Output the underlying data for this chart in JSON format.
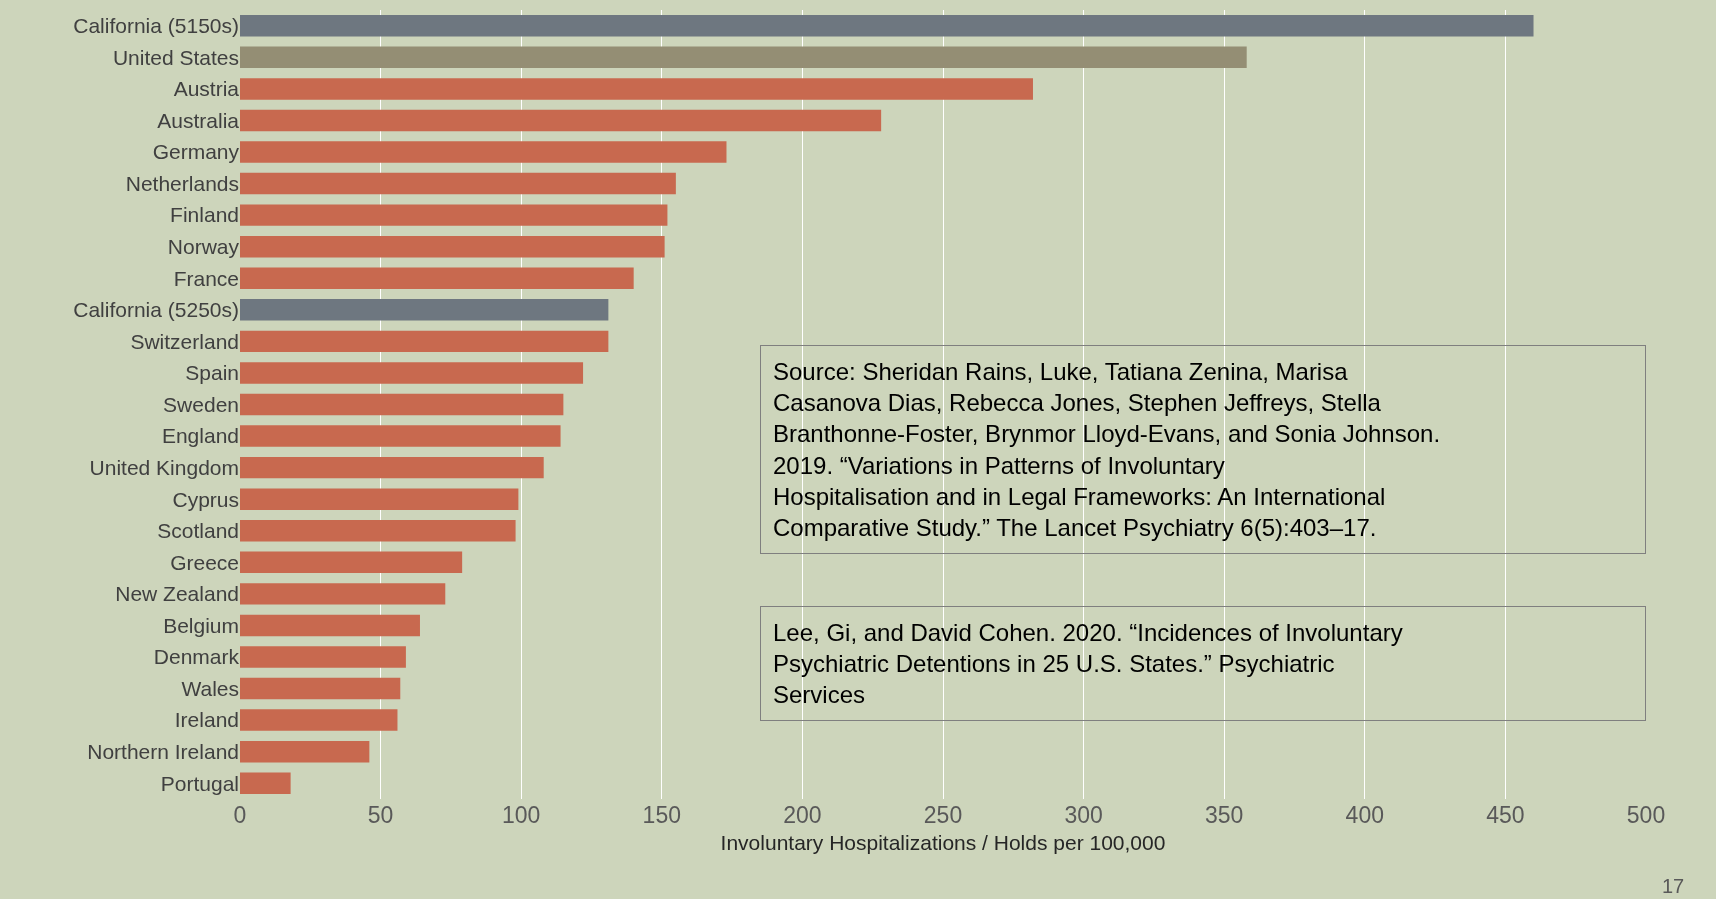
{
  "chart_data": {
    "type": "bar",
    "orientation": "horizontal",
    "xlabel": "Involuntary Hospitalizations / Holds per 100,000",
    "categories": [
      "California (5150s)",
      "United States",
      "Austria",
      "Australia",
      "Germany",
      "Netherlands",
      "Finland",
      "Norway",
      "France",
      "California (5250s)",
      "Switzerland",
      "Spain",
      "Sweden",
      "England",
      "United Kingdom",
      "Cyprus",
      "Scotland",
      "Greece",
      "New Zealand",
      "Belgium",
      "Denmark",
      "Wales",
      "Ireland",
      "Northern Ireland",
      "Portugal"
    ],
    "values": [
      460,
      358,
      282,
      228,
      173,
      155,
      152,
      151,
      140,
      131,
      131,
      122,
      115,
      114,
      108,
      99,
      98,
      79,
      73,
      64,
      59,
      57,
      56,
      46,
      18
    ],
    "colors": [
      "#6e7780",
      "#948e74",
      "#c8694f",
      "#c8694f",
      "#c8694f",
      "#c8694f",
      "#c8694f",
      "#c8694f",
      "#c8694f",
      "#6e7780",
      "#c8694f",
      "#c8694f",
      "#c8694f",
      "#c8694f",
      "#c8694f",
      "#c8694f",
      "#c8694f",
      "#c8694f",
      "#c8694f",
      "#c8694f",
      "#c8694f",
      "#c8694f",
      "#c8694f",
      "#c8694f",
      "#c8694f"
    ],
    "xlim": [
      0,
      500
    ],
    "xticks": [
      0,
      50,
      100,
      150,
      200,
      250,
      300,
      350,
      400,
      450,
      500
    ],
    "grid": "x",
    "legend": false,
    "annotations": [
      "Source: Sheridan Rains, Luke, Tatiana Zenina, Marisa Casanova Dias, Rebecca Jones, Stephen Jeffreys, Stella Branthonne-Foster, Brynmor Lloyd-Evans, and Sonia Johnson. 2019. “Variations in Patterns of Involuntary Hospitalisation and in Legal Frameworks: An International Comparative Study.” The Lancet Psychiatry 6(5):403–17.",
      "Lee, Gi, and David Cohen. 2020. “Incidences of Involuntary Psychiatric Detentions in 25 U.S. States.” Psychiatric Services",
      "17"
    ]
  }
}
